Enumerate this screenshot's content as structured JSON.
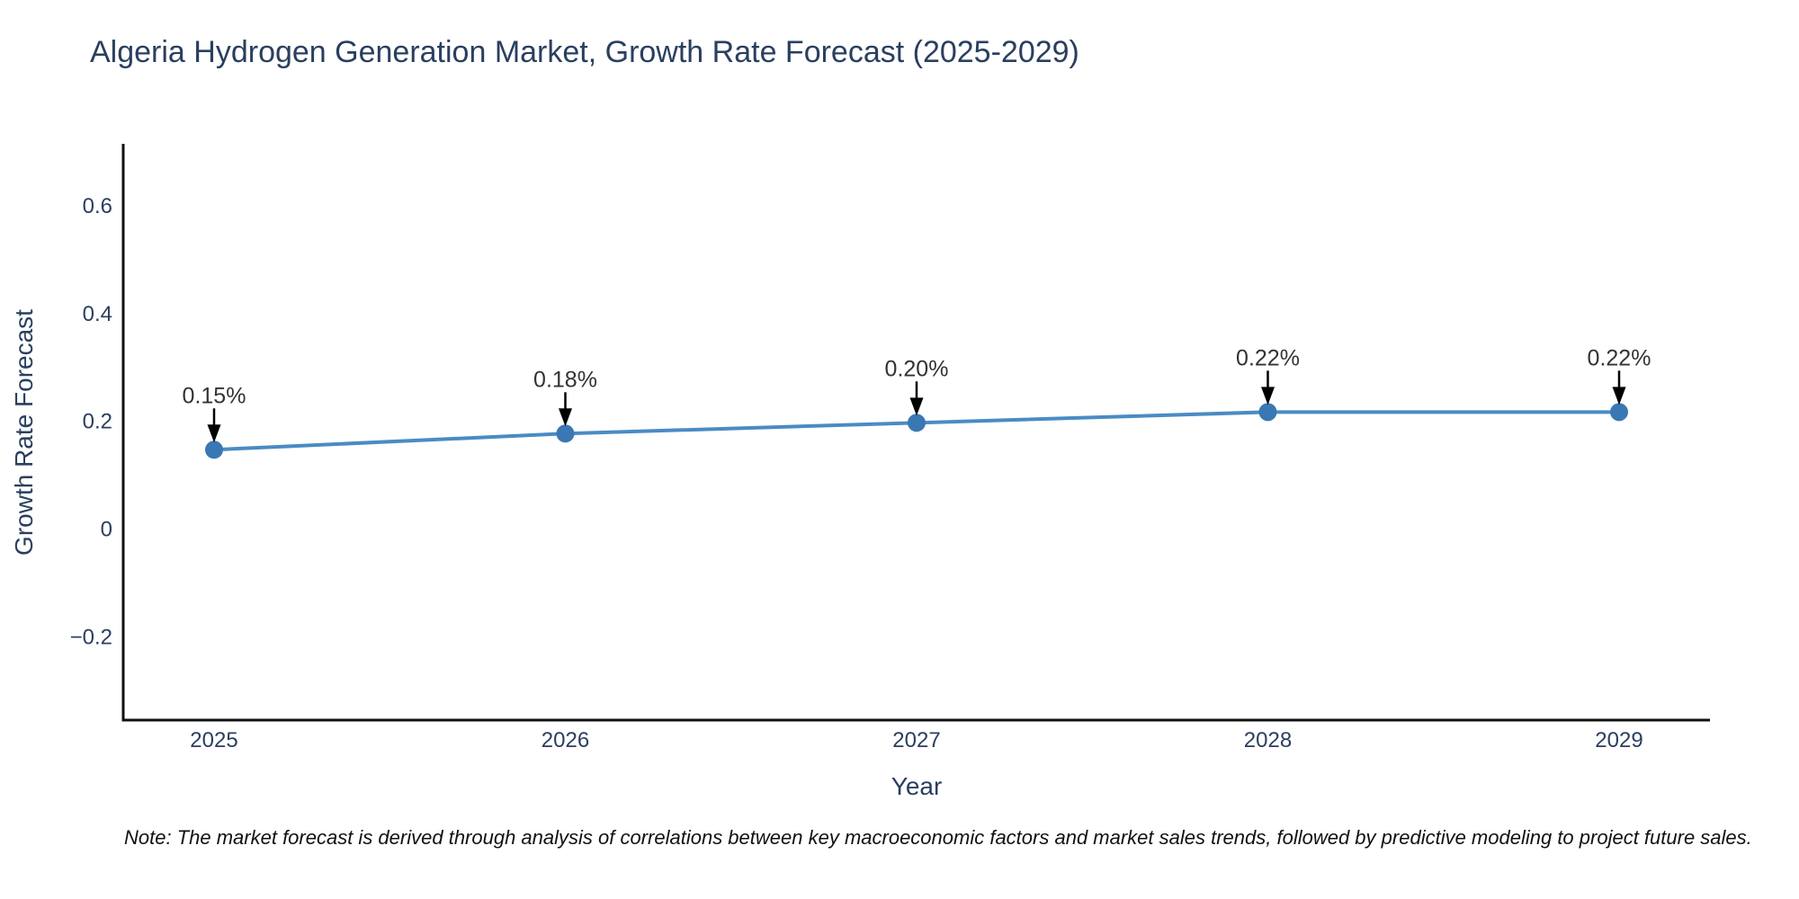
{
  "window": {
    "background": "#ffffff"
  },
  "chart": {
    "title": "Algeria Hydrogen Generation Market, Growth Rate Forecast (2025-2029)",
    "note": "Note: The market forecast is derived through analysis of correlations between key macroeconomic factors and market sales trends, followed by predictive modeling to project future sales.",
    "colors": {
      "title_text": "#2a3f5f",
      "tick_text": "#2a3f5f",
      "axis_line": "#111111",
      "line": "#4a8bc4",
      "marker": "#3a78b4",
      "annotation_text": "#333333",
      "arrow": "#000000",
      "note_text": "#111111"
    }
  },
  "chart_data": {
    "type": "line",
    "title": "Algeria Hydrogen Generation Market, Growth Rate Forecast (2025-2029)",
    "x": [
      2025,
      2026,
      2027,
      2028,
      2029
    ],
    "x_labels": [
      "2025",
      "2026",
      "2027",
      "2028",
      "2029"
    ],
    "series": [
      {
        "name": "Growth Rate Forecast",
        "values": [
          0.15,
          0.18,
          0.2,
          0.22,
          0.22
        ]
      }
    ],
    "point_labels": [
      "0.15%",
      "0.18%",
      "0.20%",
      "0.22%",
      "0.22%"
    ],
    "xlabel": "Year",
    "ylabel": "Growth Rate Forecast",
    "yticks": [
      -0.2,
      0,
      0.2,
      0.4,
      0.6
    ],
    "ytick_labels": [
      "−0.2",
      "0",
      "0.2",
      "0.4",
      "0.6"
    ],
    "ylim": [
      -0.352,
      0.718
    ],
    "grid": false,
    "legend": false,
    "annotations": "value labels with downward black arrows above each data point"
  }
}
